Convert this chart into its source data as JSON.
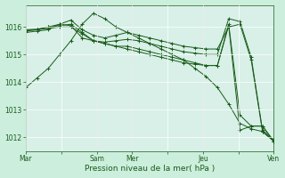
{
  "background_color": "#cceedd",
  "plot_bg_color": "#d8f0e8",
  "grid_color": "#ffffff",
  "line_color": "#1a5c1a",
  "vline_color": "#aaaaaa",
  "xlabel": "Pression niveau de la mer( hPa )",
  "ylim": [
    1011.5,
    1016.8
  ],
  "yticks": [
    1012,
    1013,
    1014,
    1015,
    1016
  ],
  "xtick_labels": [
    "Mar",
    "",
    "Sam",
    "Mer",
    "",
    "Jeu",
    "",
    "Ven"
  ],
  "xtick_positions": [
    0,
    1,
    2,
    3,
    4,
    5,
    6,
    7
  ],
  "vline_positions": [
    0,
    2,
    3,
    5,
    7
  ],
  "series": [
    [
      1013.8,
      1014.15,
      1014.5,
      1015.0,
      1015.5,
      1016.1,
      1016.5,
      1016.3,
      1016.0,
      1015.8,
      1015.6,
      1015.4,
      1015.2,
      1015.0,
      1014.8,
      1014.5,
      1014.2,
      1013.8,
      1013.2,
      1012.5,
      1012.3,
      1012.2,
      1011.85
    ],
    [
      1015.8,
      1015.85,
      1015.9,
      1016.1,
      1016.25,
      1015.9,
      1015.7,
      1015.6,
      1015.7,
      1015.8,
      1015.7,
      1015.6,
      1015.5,
      1015.4,
      1015.3,
      1015.25,
      1015.2,
      1015.2,
      1016.0,
      1016.1,
      1014.8,
      1012.2,
      1011.85
    ],
    [
      1015.85,
      1015.9,
      1016.0,
      1016.1,
      1016.05,
      1015.6,
      1015.5,
      1015.45,
      1015.5,
      1015.55,
      1015.5,
      1015.4,
      1015.3,
      1015.2,
      1015.1,
      1015.05,
      1015.0,
      1015.0,
      1016.3,
      1016.2,
      1014.9,
      1012.25,
      1011.9
    ],
    [
      1015.9,
      1015.92,
      1016.0,
      1016.05,
      1016.1,
      1015.8,
      1015.5,
      1015.4,
      1015.3,
      1015.3,
      1015.2,
      1015.1,
      1015.0,
      1014.9,
      1014.8,
      1014.7,
      1014.6,
      1014.6,
      1016.1,
      1012.8,
      1012.4,
      1012.4,
      1011.85
    ],
    [
      1015.88,
      1015.9,
      1015.95,
      1016.0,
      1016.0,
      1015.75,
      1015.5,
      1015.4,
      1015.3,
      1015.2,
      1015.1,
      1015.0,
      1014.9,
      1014.8,
      1014.7,
      1014.65,
      1014.6,
      1014.6,
      1016.05,
      1012.25,
      1012.4,
      1012.4,
      1011.85
    ]
  ],
  "ytick_fontsize": 5.5,
  "xtick_fontsize": 5.5,
  "xlabel_fontsize": 6.5
}
